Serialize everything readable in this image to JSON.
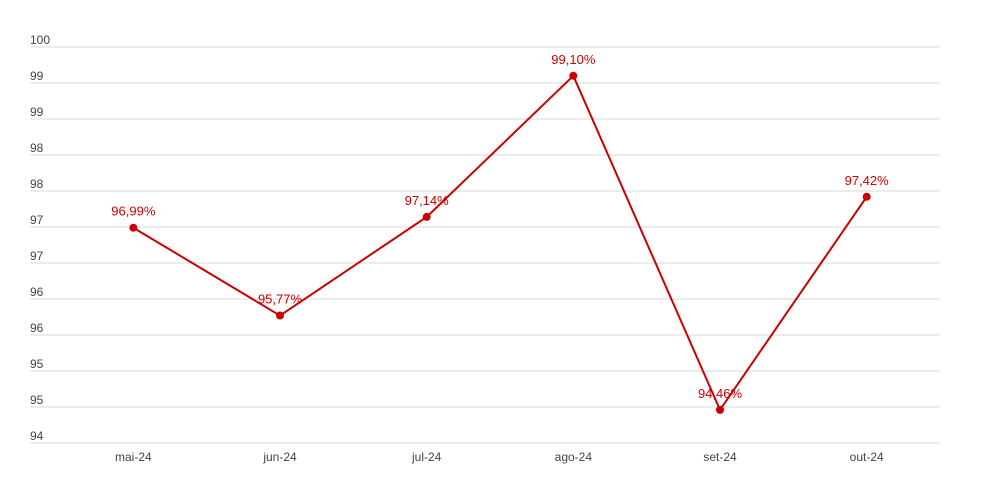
{
  "chart_data": {
    "type": "line",
    "title": "",
    "xlabel": "",
    "ylabel": "",
    "categories": [
      "mai-24",
      "jun-24",
      "jul-24",
      "ago-24",
      "set-24",
      "out-24"
    ],
    "series": [
      {
        "name": "",
        "values": [
          96.99,
          95.77,
          97.14,
          99.1,
          94.46,
          97.42
        ],
        "labels": [
          "96,99%",
          "95,77%",
          "97,14%",
          "99,10%",
          "94,46%",
          "97,42%"
        ],
        "color": "#cc0000"
      }
    ],
    "ylim": [
      94,
      99.5
    ],
    "yticks": [
      94,
      94.5,
      95,
      95.5,
      96,
      96.5,
      97,
      97.5,
      98,
      98.5,
      99,
      99.5
    ],
    "ytick_labels": [
      "94",
      "95",
      "95",
      "96",
      "96",
      "97",
      "97",
      "98",
      "98",
      "99",
      "99",
      "100"
    ],
    "grid": true,
    "legend": "none"
  }
}
